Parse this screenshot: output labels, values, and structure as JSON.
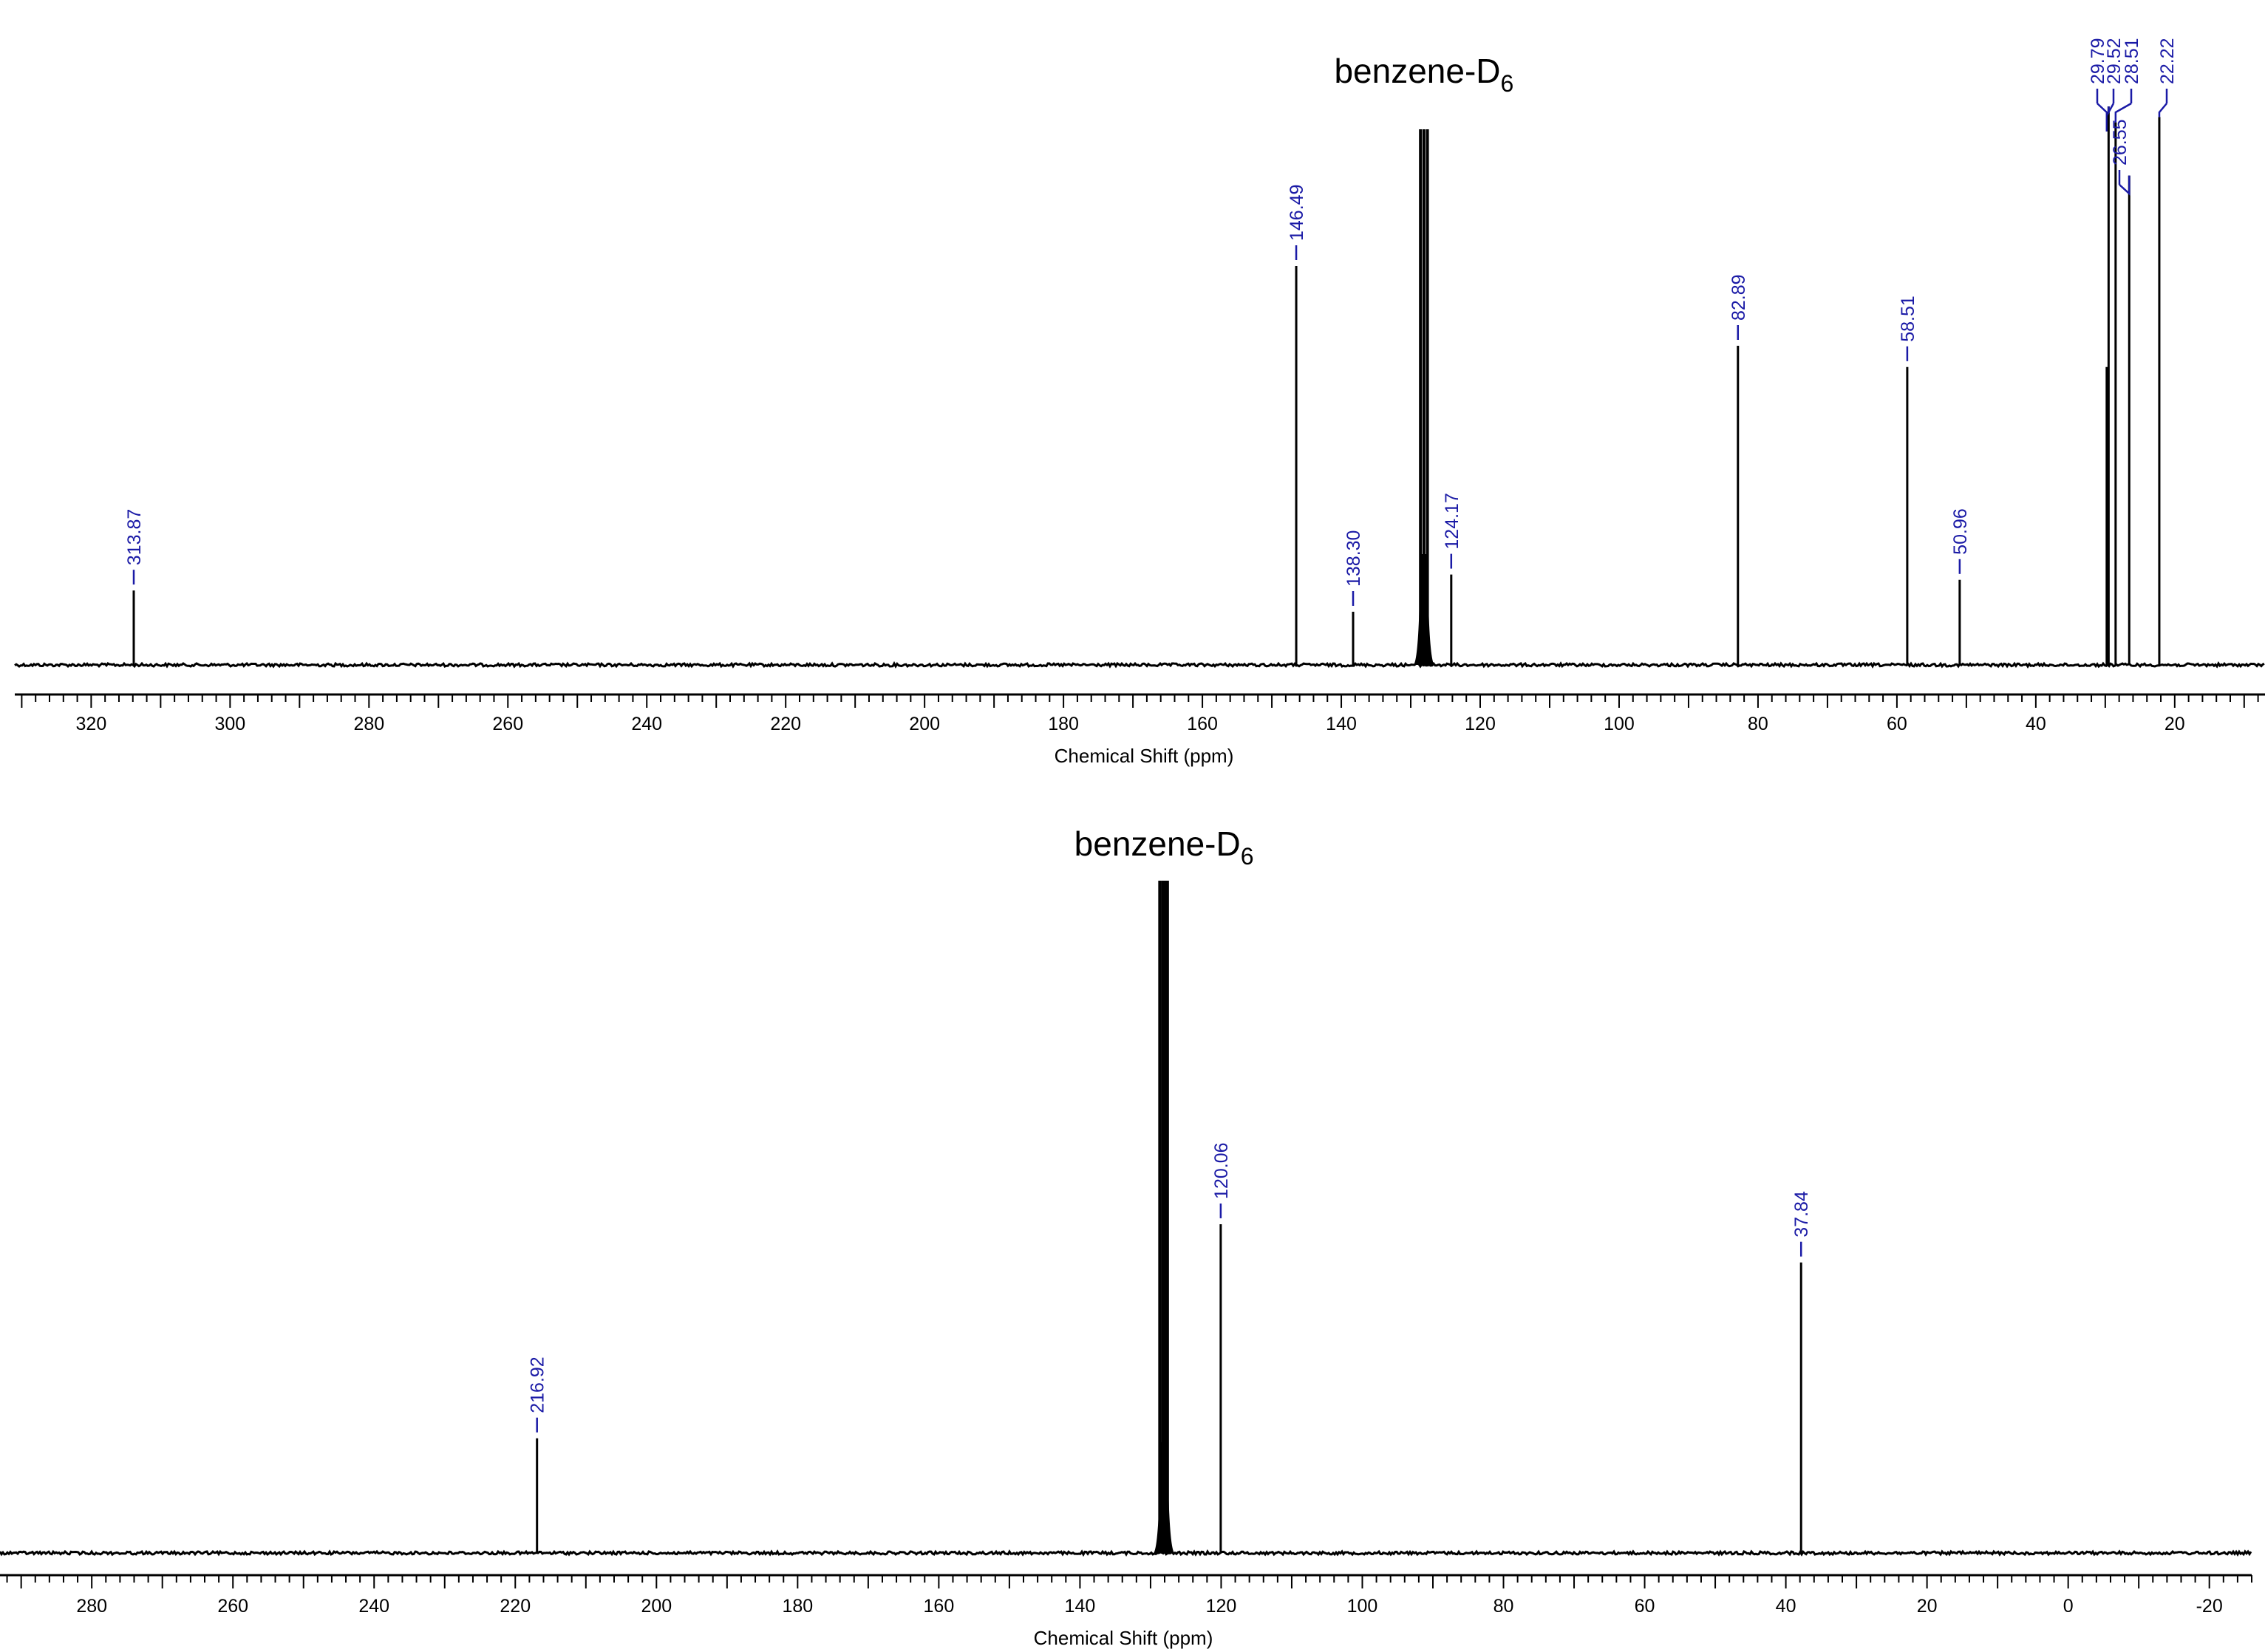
{
  "chart_data": [
    {
      "type": "line",
      "title": "",
      "xlabel": "Chemical Shift (ppm)",
      "ylabel": "",
      "xlim": [
        331,
        7
      ],
      "x_reversed": true,
      "x_ticks": [
        320,
        300,
        280,
        260,
        240,
        220,
        200,
        180,
        160,
        140,
        120,
        100,
        80,
        60,
        40,
        20
      ],
      "x_tick_labels": [
        "320",
        "300",
        "280",
        "260",
        "240",
        "220",
        "200",
        "180",
        "160",
        "140",
        "120",
        "100",
        "80",
        "60",
        "40",
        "20"
      ],
      "annotation": {
        "text": "benzene-D",
        "subscript": "6",
        "x": 128.1
      },
      "solvent_lines": [
        128.6,
        128.1,
        127.6
      ],
      "peaks": [
        {
          "x": 313.87,
          "label": "313.87",
          "height": 0.14
        },
        {
          "x": 146.49,
          "label": "146.49",
          "height": 0.75
        },
        {
          "x": 138.3,
          "label": "138.30",
          "height": 0.1
        },
        {
          "x": 124.17,
          "label": "124.17",
          "height": 0.17
        },
        {
          "x": 82.89,
          "label": "82.89",
          "height": 0.6
        },
        {
          "x": 58.51,
          "label": "58.51",
          "height": 0.56
        },
        {
          "x": 50.96,
          "label": "50.96",
          "height": 0.16
        },
        {
          "x": 29.79,
          "label": "29.79",
          "height": 0.56
        },
        {
          "x": 29.52,
          "label": "29.52",
          "height": 1.05
        },
        {
          "x": 28.51,
          "label": "28.51",
          "height": 1.02
        },
        {
          "x": 26.55,
          "label": "26.55",
          "height": 0.92
        },
        {
          "x": 22.22,
          "label": "22.22",
          "height": 1.03
        }
      ]
    },
    {
      "type": "line",
      "title": "",
      "xlabel": "Chemical Shift (ppm)",
      "ylabel": "",
      "xlim": [
        293,
        -26
      ],
      "x_reversed": true,
      "x_ticks": [
        280,
        260,
        240,
        220,
        200,
        180,
        160,
        140,
        120,
        100,
        80,
        60,
        40,
        20,
        0,
        -20
      ],
      "x_tick_labels": [
        "280",
        "260",
        "240",
        "220",
        "200",
        "180",
        "160",
        "140",
        "120",
        "100",
        "80",
        "60",
        "40",
        "20",
        "0",
        "-20"
      ],
      "annotation": {
        "text": "benzene-D",
        "subscript": "6",
        "x": 128.1
      },
      "solvent_lines": [
        128.7,
        128.3,
        128.0,
        127.6
      ],
      "peaks": [
        {
          "x": 216.92,
          "label": "216.92",
          "height": 0.15
        },
        {
          "x": 120.06,
          "label": "120.06",
          "height": 0.43
        },
        {
          "x": 37.84,
          "label": "37.84",
          "height": 0.38
        }
      ]
    }
  ]
}
